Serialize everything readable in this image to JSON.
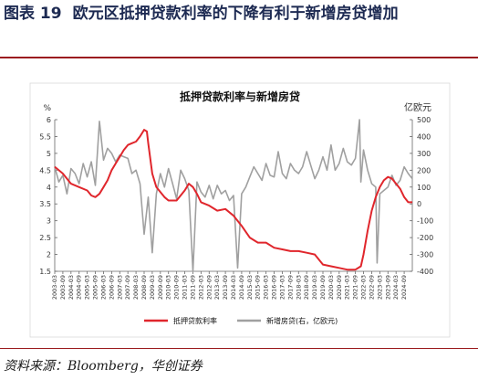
{
  "caption": {
    "label": "图表 19",
    "text": "欧元区抵押贷款利率的下降有利于新增房贷增加"
  },
  "source": "资料来源：Bloomberg，华创证券",
  "chart_data": {
    "type": "line",
    "title": "抵押贷款利率与新增房贷",
    "ylabel_left": "%",
    "ylabel_right": "亿欧元",
    "ylim_left": [
      1.5,
      6
    ],
    "ylim_right": [
      -400,
      500
    ],
    "yticks_left": [
      "1.5",
      "2",
      "2.5",
      "3",
      "3.5",
      "4",
      "4.5",
      "5",
      "5.5",
      "6"
    ],
    "yticks_right": [
      "-400",
      "-300",
      "-200",
      "-100",
      "0",
      "100",
      "200",
      "300",
      "400",
      "500"
    ],
    "x_range": [
      "2003-03",
      "2025-03"
    ],
    "xticks": [
      "2003-03",
      "2003-09",
      "2004-03",
      "2004-09",
      "2005-03",
      "2005-09",
      "2006-03",
      "2006-09",
      "2007-03",
      "2007-09",
      "2008-03",
      "2008-09",
      "2009-03",
      "2009-09",
      "2010-03",
      "2010-09",
      "2011-03",
      "2011-09",
      "2012-03",
      "2012-09",
      "2013-03",
      "2013-09",
      "2014-03",
      "2014-09",
      "2015-03",
      "2015-09",
      "2016-03",
      "2016-09",
      "2017-03",
      "2017-09",
      "2018-03",
      "2018-09",
      "2019-03",
      "2019-09",
      "2020-03",
      "2020-09",
      "2021-03",
      "2021-09",
      "2022-03",
      "2022-09",
      "2023-03",
      "2023-09",
      "2024-03",
      "2024-09"
    ],
    "legend_position": "bottom",
    "grid": false,
    "series": [
      {
        "name": "抵押贷款利率",
        "axis": "left",
        "color": "#e0262c",
        "points": [
          [
            "2003-03",
            4.6
          ],
          [
            "2003-09",
            4.4
          ],
          [
            "2004-03",
            4.1
          ],
          [
            "2004-09",
            4.0
          ],
          [
            "2005-03",
            3.9
          ],
          [
            "2005-06",
            3.75
          ],
          [
            "2005-09",
            3.7
          ],
          [
            "2005-12",
            3.8
          ],
          [
            "2006-03",
            4.0
          ],
          [
            "2006-06",
            4.2
          ],
          [
            "2006-09",
            4.5
          ],
          [
            "2006-12",
            4.7
          ],
          [
            "2007-03",
            4.9
          ],
          [
            "2007-06",
            5.1
          ],
          [
            "2007-09",
            5.25
          ],
          [
            "2007-12",
            5.3
          ],
          [
            "2008-03",
            5.35
          ],
          [
            "2008-06",
            5.5
          ],
          [
            "2008-09",
            5.7
          ],
          [
            "2008-11",
            5.65
          ],
          [
            "2008-12",
            5.3
          ],
          [
            "2009-03",
            4.4
          ],
          [
            "2009-06",
            4.0
          ],
          [
            "2009-09",
            3.85
          ],
          [
            "2009-12",
            3.7
          ],
          [
            "2010-03",
            3.6
          ],
          [
            "2010-09",
            3.6
          ],
          [
            "2011-03",
            3.9
          ],
          [
            "2011-06",
            4.1
          ],
          [
            "2011-09",
            4.0
          ],
          [
            "2011-12",
            3.8
          ],
          [
            "2012-03",
            3.55
          ],
          [
            "2012-09",
            3.45
          ],
          [
            "2013-03",
            3.3
          ],
          [
            "2013-09",
            3.35
          ],
          [
            "2014-03",
            3.15
          ],
          [
            "2014-09",
            2.85
          ],
          [
            "2015-03",
            2.5
          ],
          [
            "2015-09",
            2.35
          ],
          [
            "2016-03",
            2.35
          ],
          [
            "2016-09",
            2.2
          ],
          [
            "2017-03",
            2.15
          ],
          [
            "2017-09",
            2.1
          ],
          [
            "2018-03",
            2.1
          ],
          [
            "2018-09",
            2.05
          ],
          [
            "2019-03",
            2.0
          ],
          [
            "2019-09",
            1.7
          ],
          [
            "2020-03",
            1.65
          ],
          [
            "2020-09",
            1.6
          ],
          [
            "2021-03",
            1.55
          ],
          [
            "2021-09",
            1.55
          ],
          [
            "2022-01",
            1.65
          ],
          [
            "2022-03",
            2.0
          ],
          [
            "2022-06",
            2.7
          ],
          [
            "2022-09",
            3.3
          ],
          [
            "2022-12",
            3.7
          ],
          [
            "2023-03",
            4.0
          ],
          [
            "2023-06",
            4.2
          ],
          [
            "2023-09",
            4.3
          ],
          [
            "2023-12",
            4.25
          ],
          [
            "2024-03",
            4.1
          ],
          [
            "2024-06",
            3.95
          ],
          [
            "2024-09",
            3.7
          ],
          [
            "2024-12",
            3.55
          ],
          [
            "2025-03",
            3.55
          ]
        ]
      },
      {
        "name": "新增房贷(右，亿欧元)",
        "axis": "right",
        "color": "#a0a0a0",
        "points": [
          [
            "2003-03",
            220
          ],
          [
            "2003-06",
            130
          ],
          [
            "2003-09",
            170
          ],
          [
            "2003-12",
            60
          ],
          [
            "2004-03",
            210
          ],
          [
            "2004-06",
            180
          ],
          [
            "2004-09",
            120
          ],
          [
            "2004-12",
            240
          ],
          [
            "2005-03",
            160
          ],
          [
            "2005-06",
            250
          ],
          [
            "2005-09",
            110
          ],
          [
            "2005-12",
            490
          ],
          [
            "2006-03",
            260
          ],
          [
            "2006-06",
            330
          ],
          [
            "2006-09",
            300
          ],
          [
            "2006-12",
            250
          ],
          [
            "2007-03",
            290
          ],
          [
            "2007-06",
            280
          ],
          [
            "2007-09",
            270
          ],
          [
            "2007-12",
            180
          ],
          [
            "2008-03",
            200
          ],
          [
            "2008-06",
            120
          ],
          [
            "2008-09",
            -180
          ],
          [
            "2008-12",
            40
          ],
          [
            "2009-03",
            -290
          ],
          [
            "2009-06",
            60
          ],
          [
            "2009-09",
            180
          ],
          [
            "2009-12",
            100
          ],
          [
            "2010-03",
            210
          ],
          [
            "2010-06",
            120
          ],
          [
            "2010-09",
            30
          ],
          [
            "2010-12",
            200
          ],
          [
            "2011-03",
            150
          ],
          [
            "2011-06",
            80
          ],
          [
            "2011-09",
            -400
          ],
          [
            "2011-12",
            130
          ],
          [
            "2012-03",
            70
          ],
          [
            "2012-06",
            40
          ],
          [
            "2012-09",
            110
          ],
          [
            "2012-12",
            30
          ],
          [
            "2013-03",
            110
          ],
          [
            "2013-06",
            60
          ],
          [
            "2013-09",
            80
          ],
          [
            "2013-12",
            20
          ],
          [
            "2014-03",
            50
          ],
          [
            "2014-06",
            -380
          ],
          [
            "2014-09",
            60
          ],
          [
            "2014-12",
            100
          ],
          [
            "2015-03",
            160
          ],
          [
            "2015-06",
            220
          ],
          [
            "2015-09",
            180
          ],
          [
            "2015-12",
            140
          ],
          [
            "2016-03",
            240
          ],
          [
            "2016-06",
            170
          ],
          [
            "2016-09",
            160
          ],
          [
            "2016-12",
            310
          ],
          [
            "2017-03",
            180
          ],
          [
            "2017-06",
            150
          ],
          [
            "2017-09",
            240
          ],
          [
            "2017-12",
            200
          ],
          [
            "2018-03",
            180
          ],
          [
            "2018-06",
            220
          ],
          [
            "2018-09",
            310
          ],
          [
            "2018-12",
            230
          ],
          [
            "2019-03",
            150
          ],
          [
            "2019-06",
            200
          ],
          [
            "2019-09",
            280
          ],
          [
            "2019-12",
            200
          ],
          [
            "2020-03",
            350
          ],
          [
            "2020-06",
            200
          ],
          [
            "2020-09",
            240
          ],
          [
            "2020-12",
            330
          ],
          [
            "2021-03",
            250
          ],
          [
            "2021-06",
            230
          ],
          [
            "2021-09",
            270
          ],
          [
            "2021-12",
            500
          ],
          [
            "2022-01",
            130
          ],
          [
            "2022-03",
            320
          ],
          [
            "2022-06",
            200
          ],
          [
            "2022-09",
            120
          ],
          [
            "2022-12",
            100
          ],
          [
            "2023-01",
            -350
          ],
          [
            "2023-03",
            60
          ],
          [
            "2023-06",
            80
          ],
          [
            "2023-09",
            100
          ],
          [
            "2023-12",
            170
          ],
          [
            "2024-03",
            110
          ],
          [
            "2024-06",
            140
          ],
          [
            "2024-09",
            220
          ],
          [
            "2024-12",
            180
          ],
          [
            "2025-03",
            150
          ]
        ]
      }
    ]
  }
}
